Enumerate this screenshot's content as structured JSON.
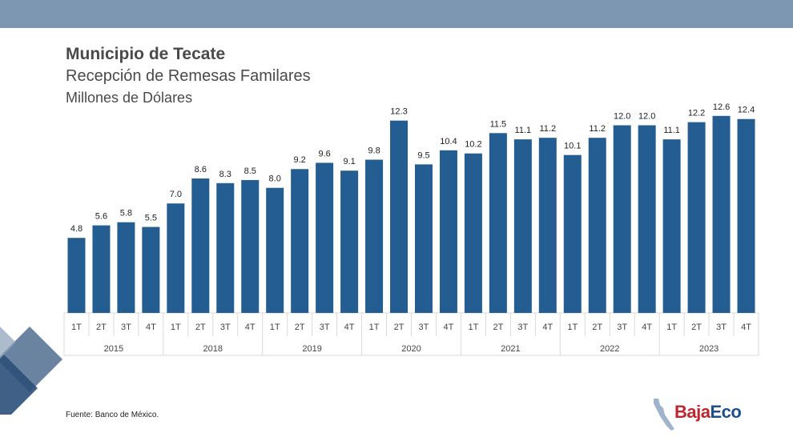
{
  "header": {
    "title": "Municipio de Tecate",
    "subtitle": "Recepción de Remesas Familares",
    "units": "Millones de Dólares"
  },
  "footer": {
    "source": "Fuente: Banco de México."
  },
  "logo": {
    "part1": "Baja",
    "part2": "Eco"
  },
  "colors": {
    "bar": "#245d91",
    "top_bar": "#7d97b3",
    "grid": "#d9d9d9"
  },
  "chart_data": {
    "type": "bar",
    "categories": [
      "1T",
      "2T",
      "3T",
      "4T",
      "1T",
      "2T",
      "3T",
      "4T",
      "1T",
      "2T",
      "3T",
      "4T",
      "1T",
      "2T",
      "3T",
      "4T",
      "1T",
      "2T",
      "3T",
      "4T",
      "1T",
      "2T",
      "3T",
      "4T",
      "1T",
      "2T",
      "3T",
      "4T"
    ],
    "groups": [
      {
        "label": "2015",
        "count": 4
      },
      {
        "label": "2018",
        "count": 4
      },
      {
        "label": "2019",
        "count": 4
      },
      {
        "label": "2020",
        "count": 4
      },
      {
        "label": "2021",
        "count": 4
      },
      {
        "label": "2022",
        "count": 4
      },
      {
        "label": "2023",
        "count": 4
      }
    ],
    "values": [
      4.8,
      5.6,
      5.8,
      5.5,
      7.0,
      8.6,
      8.3,
      8.5,
      8.0,
      9.2,
      9.6,
      9.1,
      9.8,
      12.3,
      9.5,
      10.4,
      10.2,
      11.5,
      11.1,
      11.2,
      10.1,
      11.2,
      12.0,
      12.0,
      11.1,
      12.2,
      12.6,
      12.4
    ],
    "value_labels": [
      "4.8",
      "5.6",
      "5.8",
      "5.5",
      "7.0",
      "8.6",
      "8.3",
      "8.5",
      "8.0",
      "9.2",
      "9.6",
      "9.1",
      "9.8",
      "12.3",
      "9.5",
      "10.4",
      "10.2",
      "11.5",
      "11.1",
      "11.2",
      "10.1",
      "11.2",
      "12.0",
      "12.0",
      "11.1",
      "12.2",
      "12.6",
      "12.4"
    ],
    "ylim": [
      0,
      13
    ],
    "grid": false,
    "legend": "none"
  }
}
